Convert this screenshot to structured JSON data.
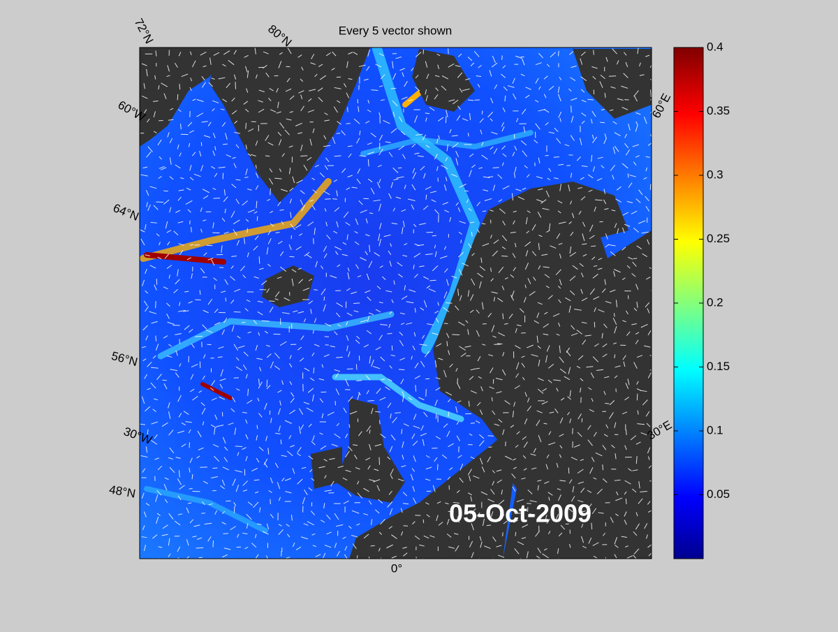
{
  "title": "Every 5 vector shown",
  "date": "05-Oct-2009",
  "graticule_labels": [
    "72°N",
    "80°N",
    "60°W",
    "64°N",
    "60°E",
    "56°N",
    "30°W",
    "48°N",
    "0°",
    "30°E"
  ],
  "colorbar": {
    "lim": [
      0,
      0.4
    ],
    "ticks": [
      0.05,
      0.1,
      0.15,
      0.2,
      0.25,
      0.3,
      0.35,
      0.4
    ]
  }
}
